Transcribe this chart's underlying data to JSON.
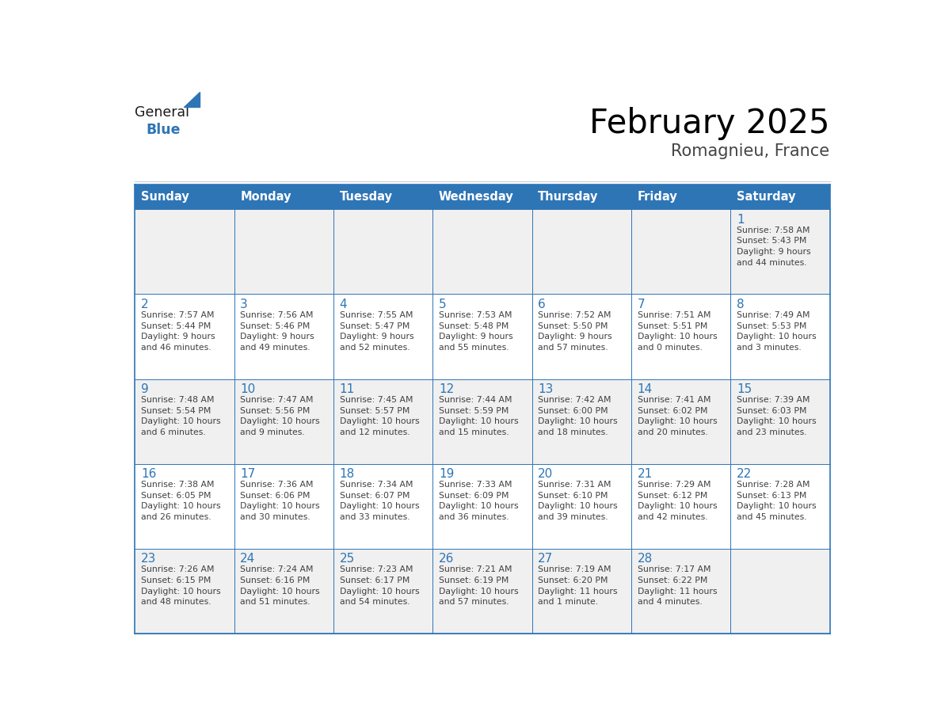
{
  "title": "February 2025",
  "subtitle": "Romagnieu, France",
  "header_bg": "#2E75B6",
  "header_text_color": "#FFFFFF",
  "day_names": [
    "Sunday",
    "Monday",
    "Tuesday",
    "Wednesday",
    "Thursday",
    "Friday",
    "Saturday"
  ],
  "cell_bg_odd": "#F0F0F0",
  "cell_bg_even": "#FFFFFF",
  "cell_border": "#2E75B6",
  "number_color": "#2E75B6",
  "text_color": "#404040",
  "logo_general_color": "#1a1a1a",
  "logo_blue_color": "#2E75B6",
  "weeks": [
    [
      {
        "day": null,
        "info": ""
      },
      {
        "day": null,
        "info": ""
      },
      {
        "day": null,
        "info": ""
      },
      {
        "day": null,
        "info": ""
      },
      {
        "day": null,
        "info": ""
      },
      {
        "day": null,
        "info": ""
      },
      {
        "day": 1,
        "info": "Sunrise: 7:58 AM\nSunset: 5:43 PM\nDaylight: 9 hours\nand 44 minutes."
      }
    ],
    [
      {
        "day": 2,
        "info": "Sunrise: 7:57 AM\nSunset: 5:44 PM\nDaylight: 9 hours\nand 46 minutes."
      },
      {
        "day": 3,
        "info": "Sunrise: 7:56 AM\nSunset: 5:46 PM\nDaylight: 9 hours\nand 49 minutes."
      },
      {
        "day": 4,
        "info": "Sunrise: 7:55 AM\nSunset: 5:47 PM\nDaylight: 9 hours\nand 52 minutes."
      },
      {
        "day": 5,
        "info": "Sunrise: 7:53 AM\nSunset: 5:48 PM\nDaylight: 9 hours\nand 55 minutes."
      },
      {
        "day": 6,
        "info": "Sunrise: 7:52 AM\nSunset: 5:50 PM\nDaylight: 9 hours\nand 57 minutes."
      },
      {
        "day": 7,
        "info": "Sunrise: 7:51 AM\nSunset: 5:51 PM\nDaylight: 10 hours\nand 0 minutes."
      },
      {
        "day": 8,
        "info": "Sunrise: 7:49 AM\nSunset: 5:53 PM\nDaylight: 10 hours\nand 3 minutes."
      }
    ],
    [
      {
        "day": 9,
        "info": "Sunrise: 7:48 AM\nSunset: 5:54 PM\nDaylight: 10 hours\nand 6 minutes."
      },
      {
        "day": 10,
        "info": "Sunrise: 7:47 AM\nSunset: 5:56 PM\nDaylight: 10 hours\nand 9 minutes."
      },
      {
        "day": 11,
        "info": "Sunrise: 7:45 AM\nSunset: 5:57 PM\nDaylight: 10 hours\nand 12 minutes."
      },
      {
        "day": 12,
        "info": "Sunrise: 7:44 AM\nSunset: 5:59 PM\nDaylight: 10 hours\nand 15 minutes."
      },
      {
        "day": 13,
        "info": "Sunrise: 7:42 AM\nSunset: 6:00 PM\nDaylight: 10 hours\nand 18 minutes."
      },
      {
        "day": 14,
        "info": "Sunrise: 7:41 AM\nSunset: 6:02 PM\nDaylight: 10 hours\nand 20 minutes."
      },
      {
        "day": 15,
        "info": "Sunrise: 7:39 AM\nSunset: 6:03 PM\nDaylight: 10 hours\nand 23 minutes."
      }
    ],
    [
      {
        "day": 16,
        "info": "Sunrise: 7:38 AM\nSunset: 6:05 PM\nDaylight: 10 hours\nand 26 minutes."
      },
      {
        "day": 17,
        "info": "Sunrise: 7:36 AM\nSunset: 6:06 PM\nDaylight: 10 hours\nand 30 minutes."
      },
      {
        "day": 18,
        "info": "Sunrise: 7:34 AM\nSunset: 6:07 PM\nDaylight: 10 hours\nand 33 minutes."
      },
      {
        "day": 19,
        "info": "Sunrise: 7:33 AM\nSunset: 6:09 PM\nDaylight: 10 hours\nand 36 minutes."
      },
      {
        "day": 20,
        "info": "Sunrise: 7:31 AM\nSunset: 6:10 PM\nDaylight: 10 hours\nand 39 minutes."
      },
      {
        "day": 21,
        "info": "Sunrise: 7:29 AM\nSunset: 6:12 PM\nDaylight: 10 hours\nand 42 minutes."
      },
      {
        "day": 22,
        "info": "Sunrise: 7:28 AM\nSunset: 6:13 PM\nDaylight: 10 hours\nand 45 minutes."
      }
    ],
    [
      {
        "day": 23,
        "info": "Sunrise: 7:26 AM\nSunset: 6:15 PM\nDaylight: 10 hours\nand 48 minutes."
      },
      {
        "day": 24,
        "info": "Sunrise: 7:24 AM\nSunset: 6:16 PM\nDaylight: 10 hours\nand 51 minutes."
      },
      {
        "day": 25,
        "info": "Sunrise: 7:23 AM\nSunset: 6:17 PM\nDaylight: 10 hours\nand 54 minutes."
      },
      {
        "day": 26,
        "info": "Sunrise: 7:21 AM\nSunset: 6:19 PM\nDaylight: 10 hours\nand 57 minutes."
      },
      {
        "day": 27,
        "info": "Sunrise: 7:19 AM\nSunset: 6:20 PM\nDaylight: 11 hours\nand 1 minute."
      },
      {
        "day": 28,
        "info": "Sunrise: 7:17 AM\nSunset: 6:22 PM\nDaylight: 11 hours\nand 4 minutes."
      },
      {
        "day": null,
        "info": ""
      }
    ]
  ]
}
